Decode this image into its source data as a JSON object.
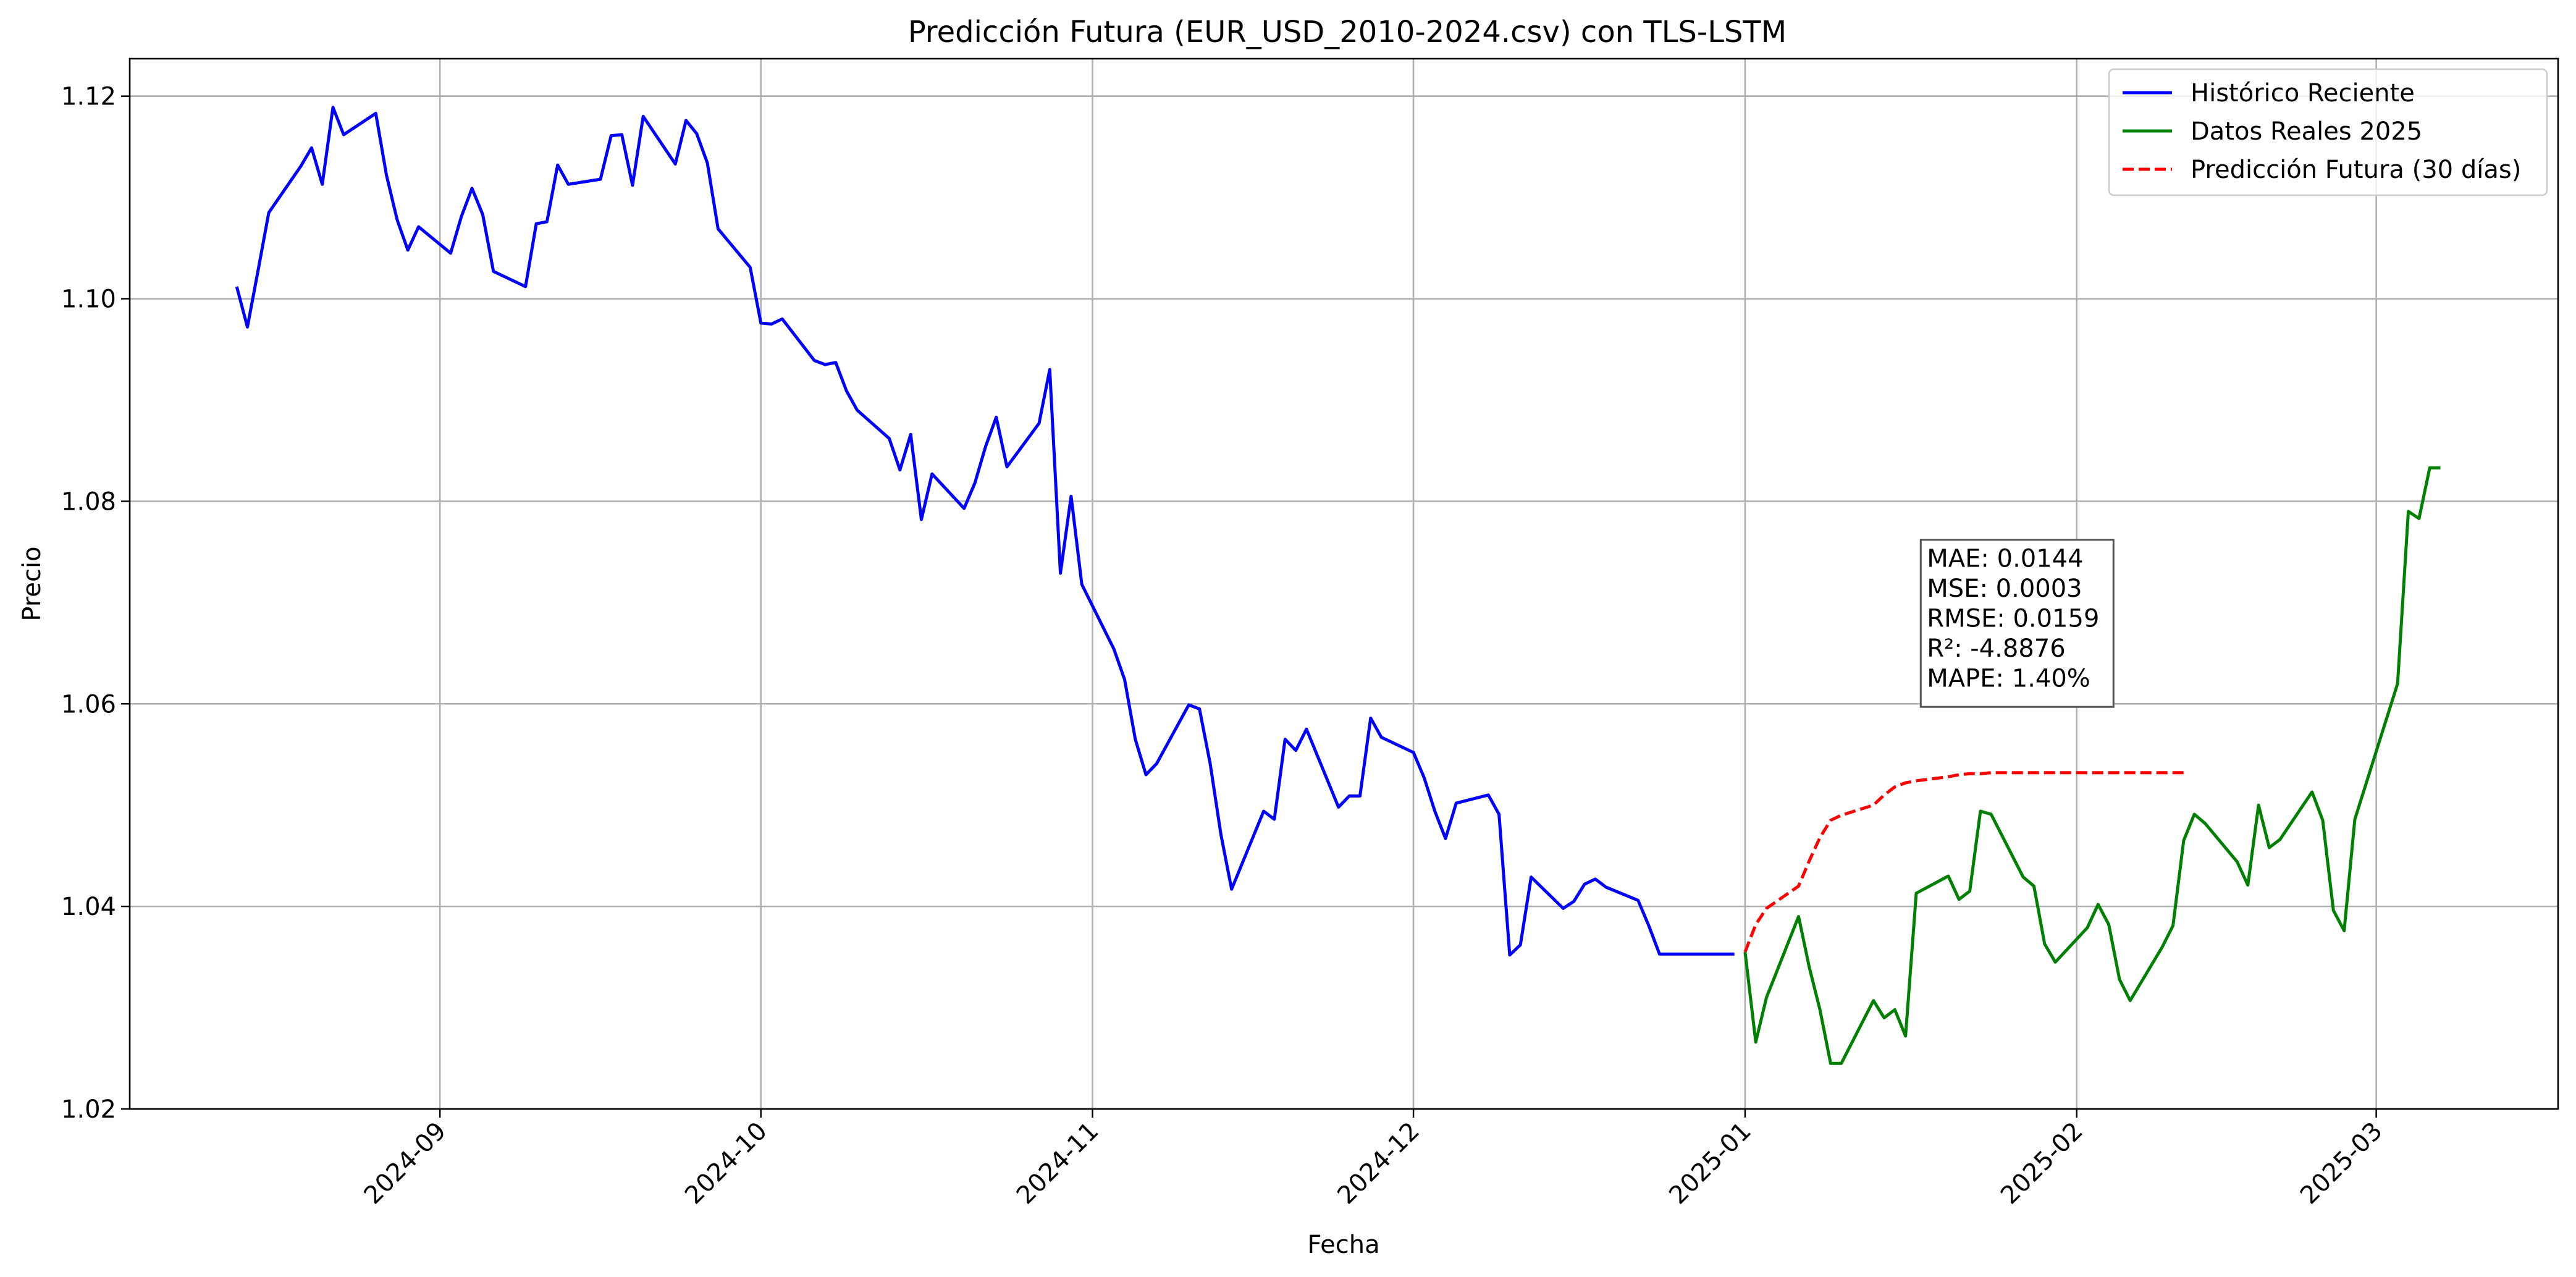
{
  "chart_data": {
    "type": "line",
    "title": "Predicción Futura (EUR_USD_2010-2024.csv) con TLS-LSTM",
    "xlabel": "Fecha",
    "ylabel": "Precio",
    "xlim": [
      "2024-08-03",
      "2025-03-18"
    ],
    "ylim": [
      1.02,
      1.1237
    ],
    "x_ticks": [
      "2024-09-01",
      "2024-10-01",
      "2024-11-01",
      "2024-12-01",
      "2025-01-01",
      "2025-02-01",
      "2025-03-01"
    ],
    "x_tick_labels": [
      "2024-09",
      "2024-10",
      "2024-11",
      "2024-12",
      "2025-01",
      "2025-02",
      "2025-03"
    ],
    "y_ticks": [
      1.02,
      1.04,
      1.06,
      1.08,
      1.1,
      1.12
    ],
    "y_tick_labels": [
      "1.02",
      "1.04",
      "1.06",
      "1.08",
      "1.10",
      "1.12"
    ],
    "grid": true,
    "legend_position": "top-right",
    "series": [
      {
        "name": "Histórico Reciente",
        "color": "#0000ff",
        "style": "solid",
        "x": [
          "2024-08-13",
          "2024-08-14",
          "2024-08-15",
          "2024-08-16",
          "2024-08-19",
          "2024-08-20",
          "2024-08-21",
          "2024-08-22",
          "2024-08-23",
          "2024-08-26",
          "2024-08-27",
          "2024-08-28",
          "2024-08-29",
          "2024-08-30",
          "2024-09-02",
          "2024-09-03",
          "2024-09-04",
          "2024-09-05",
          "2024-09-06",
          "2024-09-09",
          "2024-09-10",
          "2024-09-11",
          "2024-09-12",
          "2024-09-13",
          "2024-09-16",
          "2024-09-17",
          "2024-09-18",
          "2024-09-19",
          "2024-09-20",
          "2024-09-23",
          "2024-09-24",
          "2024-09-25",
          "2024-09-26",
          "2024-09-27",
          "2024-09-30",
          "2024-10-01",
          "2024-10-02",
          "2024-10-03",
          "2024-10-06",
          "2024-10-07",
          "2024-10-08",
          "2024-10-09",
          "2024-10-10",
          "2024-10-13",
          "2024-10-14",
          "2024-10-15",
          "2024-10-16",
          "2024-10-17",
          "2024-10-20",
          "2024-10-21",
          "2024-10-22",
          "2024-10-23",
          "2024-10-24",
          "2024-10-27",
          "2024-10-28",
          "2024-10-29",
          "2024-10-30",
          "2024-10-31",
          "2024-11-03",
          "2024-11-04",
          "2024-11-05",
          "2024-11-06",
          "2024-11-07",
          "2024-11-10",
          "2024-11-11",
          "2024-11-12",
          "2024-11-13",
          "2024-11-14",
          "2024-11-17",
          "2024-11-18",
          "2024-11-19",
          "2024-11-20",
          "2024-11-21",
          "2024-11-24",
          "2024-11-25",
          "2024-11-26",
          "2024-11-27",
          "2024-11-28",
          "2024-12-01",
          "2024-12-02",
          "2024-12-03",
          "2024-12-04",
          "2024-12-05",
          "2024-12-08",
          "2024-12-09",
          "2024-12-10",
          "2024-12-11",
          "2024-12-12",
          "2024-12-15",
          "2024-12-16",
          "2024-12-17",
          "2024-12-18",
          "2024-12-19",
          "2024-12-22",
          "2024-12-23",
          "2024-12-24",
          "2024-12-25",
          "2024-12-26",
          "2024-12-29",
          "2024-12-30"
        ],
        "y": [
          1.1012,
          1.0972,
          1.1028,
          1.1085,
          1.1131,
          1.1149,
          1.1113,
          1.1189,
          1.1162,
          1.1183,
          1.1122,
          1.1078,
          1.1048,
          1.1071,
          1.1045,
          1.1081,
          1.1109,
          1.1083,
          1.1027,
          1.1012,
          1.1074,
          1.1076,
          1.1132,
          1.1113,
          1.1118,
          1.1161,
          1.1162,
          1.1112,
          1.118,
          1.1133,
          1.1176,
          1.1163,
          1.1134,
          1.1069,
          1.1031,
          1.0976,
          1.0975,
          1.098,
          1.0939,
          1.0935,
          1.0937,
          1.0909,
          1.089,
          1.0862,
          1.0831,
          1.0866,
          1.0782,
          1.0827,
          1.0793,
          1.0818,
          1.0854,
          1.0883,
          1.0834,
          1.0877,
          1.093,
          1.0729,
          1.0805,
          1.0718,
          1.0654,
          1.0624,
          1.0565,
          1.053,
          1.0541,
          1.0599,
          1.0595,
          1.0541,
          1.0471,
          1.0417,
          1.0494,
          1.0486,
          1.0565,
          1.0554,
          1.0575,
          1.0498,
          1.0509,
          1.0509,
          1.0586,
          1.0567,
          1.0552,
          1.0527,
          1.0494,
          1.0467,
          1.0502,
          1.051,
          1.0491,
          1.0352,
          1.0362,
          1.0429,
          1.0398,
          1.0405,
          1.0422,
          1.0427,
          1.0419,
          1.0406,
          1.0381,
          1.0353,
          1.0353,
          1.0353,
          1.0353,
          1.0353
        ],
        "x_end": "2024-12-31"
      },
      {
        "name": "Datos Reales 2025",
        "color": "#008000",
        "style": "solid",
        "x": [
          "2025-01-01",
          "2025-01-02",
          "2025-01-03",
          "2025-01-06",
          "2025-01-07",
          "2025-01-08",
          "2025-01-09",
          "2025-01-10",
          "2025-01-13",
          "2025-01-14",
          "2025-01-15",
          "2025-01-16",
          "2025-01-17",
          "2025-01-20",
          "2025-01-21",
          "2025-01-22",
          "2025-01-23",
          "2025-01-24",
          "2025-01-27",
          "2025-01-28",
          "2025-01-29",
          "2025-01-30",
          "2025-02-02",
          "2025-02-03",
          "2025-02-04",
          "2025-02-05",
          "2025-02-06",
          "2025-02-09",
          "2025-02-10",
          "2025-02-11",
          "2025-02-12",
          "2025-02-13",
          "2025-02-16",
          "2025-02-17",
          "2025-02-18",
          "2025-02-19",
          "2025-02-20",
          "2025-02-23",
          "2025-02-24",
          "2025-02-25",
          "2025-02-26",
          "2025-02-27",
          "2025-03-03",
          "2025-03-04",
          "2025-03-05",
          "2025-03-06",
          "2025-03-07"
        ],
        "y": [
          1.0355,
          1.0266,
          1.031,
          1.039,
          1.034,
          1.0298,
          1.0245,
          1.0245,
          1.0307,
          1.029,
          1.0298,
          1.0272,
          1.0413,
          1.043,
          1.0407,
          1.0415,
          1.0494,
          1.0491,
          1.0429,
          1.042,
          1.0363,
          1.0345,
          1.0379,
          1.0402,
          1.0382,
          1.0328,
          1.0307,
          1.036,
          1.0381,
          1.0465,
          1.0491,
          1.0482,
          1.0444,
          1.0421,
          1.05,
          1.0458,
          1.0466,
          1.0513,
          1.0485,
          1.0396,
          1.0376,
          1.0486,
          1.062,
          1.079,
          1.0783,
          1.0833,
          1.0833
        ]
      },
      {
        "name": "Predicción Futura (30 días)",
        "color": "#ff0000",
        "style": "dashed",
        "x": [
          "2025-01-01",
          "2025-01-02",
          "2025-01-03",
          "2025-01-06",
          "2025-01-07",
          "2025-01-08",
          "2025-01-09",
          "2025-01-10",
          "2025-01-13",
          "2025-01-14",
          "2025-01-15",
          "2025-01-16",
          "2025-01-17",
          "2025-01-20",
          "2025-01-21",
          "2025-01-22",
          "2025-01-23",
          "2025-01-24",
          "2025-01-27",
          "2025-01-28",
          "2025-01-29",
          "2025-01-30",
          "2025-01-31",
          "2025-02-03",
          "2025-02-04",
          "2025-02-05",
          "2025-02-06",
          "2025-02-07",
          "2025-02-10",
          "2025-02-11"
        ],
        "y": [
          1.0355,
          1.0382,
          1.0398,
          1.042,
          1.0445,
          1.0468,
          1.0485,
          1.049,
          1.05,
          1.051,
          1.0518,
          1.0522,
          1.0524,
          1.0528,
          1.053,
          1.0531,
          1.0531,
          1.0532,
          1.0532,
          1.0532,
          1.0532,
          1.0532,
          1.0532,
          1.0532,
          1.0532,
          1.0532,
          1.0532,
          1.0532,
          1.0532,
          1.0532
        ]
      }
    ],
    "annotation": {
      "lines": [
        "MAE: 0.0144",
        "MSE: 0.0003",
        "RMSE: 0.0159",
        "R²: -4.8876",
        "MAPE: 1.40%"
      ],
      "anchor_x": "2025-01-18",
      "anchor_y": 1.0597
    }
  }
}
